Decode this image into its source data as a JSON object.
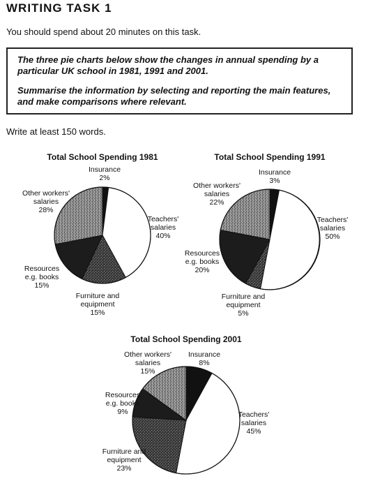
{
  "header": {
    "title": "WRITING TASK 1",
    "instruction": "You should spend about 20 minutes on this task.",
    "prompt_line1": "The three pie charts below show the changes in annual spending by a particular UK school in 1981, 1991 and 2001.",
    "prompt_line2": "Summarise the information by selecting and reporting the main features, and make comparisons where relevant.",
    "word_count": "Write at least 150 words."
  },
  "chart_data": [
    {
      "type": "pie",
      "title": "Total School Spending 1981",
      "slices": [
        {
          "label": [
            "Insurance"
          ],
          "value": 2,
          "display": "2%",
          "pattern": "black"
        },
        {
          "label": [
            "Teachers'",
            "salaries"
          ],
          "value": 40,
          "display": "40%",
          "pattern": "white"
        },
        {
          "label": [
            "Furniture and",
            "equipment"
          ],
          "value": 15,
          "display": "15%",
          "pattern": "dark-texture"
        },
        {
          "label": [
            "Resources",
            "e.g. books"
          ],
          "value": 15,
          "display": "15%",
          "pattern": "near-black"
        },
        {
          "label": [
            "Other workers'",
            "salaries"
          ],
          "value": 28,
          "display": "28%",
          "pattern": "grey-texture"
        }
      ]
    },
    {
      "type": "pie",
      "title": "Total School Spending 1991",
      "slices": [
        {
          "label": [
            "Insurance"
          ],
          "value": 3,
          "display": "3%",
          "pattern": "black"
        },
        {
          "label": [
            "Teachers'",
            "salaries"
          ],
          "value": 50,
          "display": "50%",
          "pattern": "white"
        },
        {
          "label": [
            "Furniture and",
            "equipment"
          ],
          "value": 5,
          "display": "5%",
          "pattern": "dark-texture"
        },
        {
          "label": [
            "Resources",
            "e.g. books"
          ],
          "value": 20,
          "display": "20%",
          "pattern": "near-black"
        },
        {
          "label": [
            "Other workers'",
            "salaries"
          ],
          "value": 22,
          "display": "22%",
          "pattern": "grey-texture"
        }
      ]
    },
    {
      "type": "pie",
      "title": "Total School Spending 2001",
      "slices": [
        {
          "label": [
            "Insurance"
          ],
          "value": 8,
          "display": "8%",
          "pattern": "black"
        },
        {
          "label": [
            "Teachers'",
            "salaries"
          ],
          "value": 45,
          "display": "45%",
          "pattern": "white"
        },
        {
          "label": [
            "Furniture and",
            "equipment"
          ],
          "value": 23,
          "display": "23%",
          "pattern": "dark-texture"
        },
        {
          "label": [
            "Resources",
            "e.g. books"
          ],
          "value": 9,
          "display": "9%",
          "pattern": "near-black"
        },
        {
          "label": [
            "Other workers'",
            "salaries"
          ],
          "value": 15,
          "display": "15%",
          "pattern": "grey-texture"
        }
      ]
    }
  ]
}
